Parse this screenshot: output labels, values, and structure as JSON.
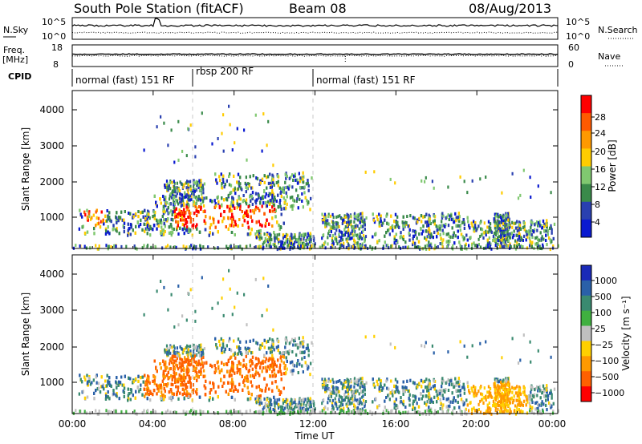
{
  "header": {
    "station": "South Pole Station (fitACF)",
    "beam": "Beam 08",
    "date": "08/Aug/2013"
  },
  "chart_data": [
    {
      "type": "line",
      "name": "sky-search-noise",
      "left_label": "N.Sky",
      "right_label": "N.Search",
      "left_ticks": [
        "10^5",
        "10^0"
      ],
      "right_ticks": [
        "10^5",
        "10^0"
      ],
      "xlim": [
        0,
        24
      ]
    },
    {
      "type": "line",
      "name": "frequency-nave",
      "left_label": "Freq.",
      "left_unit": "[MHz]",
      "right_label": "Nave",
      "left_ticks": [
        "18",
        "8"
      ],
      "right_ticks": [
        "60",
        "0"
      ],
      "xlim": [
        0,
        24
      ]
    },
    {
      "type": "table",
      "name": "cpid",
      "label": "CPID",
      "segments": [
        {
          "start": 0,
          "end": 6,
          "label": "normal (fast) 151 RF"
        },
        {
          "start": 6,
          "end": 12,
          "label": "rbsp 200 RF"
        },
        {
          "start": 12,
          "end": 24,
          "label": "normal (fast) 151 RF"
        }
      ]
    },
    {
      "type": "heatmap",
      "name": "power",
      "ylabel": "Slant Range [km]",
      "y_ticks": [
        "1000",
        "2000",
        "3000",
        "4000"
      ],
      "ylim": [
        200,
        4500
      ],
      "xlim": [
        0,
        24
      ],
      "colorbar_label": "Power [dB]",
      "colorbar_ticks": [
        "28",
        "24",
        "20",
        "16",
        "12",
        "8",
        "4"
      ],
      "colorbar_colors": [
        "#ff0000",
        "#ff5a00",
        "#ff9900",
        "#ffcc00",
        "#80c870",
        "#3a8a4a",
        "#2a40b0",
        "#0a1ad0"
      ]
    },
    {
      "type": "heatmap",
      "name": "velocity",
      "ylabel": "Slant Range [km]",
      "y_ticks": [
        "1000",
        "2000",
        "3000",
        "4000"
      ],
      "ylim": [
        200,
        4500
      ],
      "xlim": [
        0,
        24
      ],
      "xlabel": "Time UT",
      "x_ticks": [
        "00:00",
        "04:00",
        "08:00",
        "12:00",
        "16:00",
        "20:00",
        "00:00"
      ],
      "colorbar_label": "Velocity [m s⁻¹]",
      "colorbar_ticks": [
        "1000",
        "500",
        "100",
        "25",
        "−25",
        "−100",
        "−500",
        "−1000"
      ],
      "colorbar_colors": [
        "#1a2ab8",
        "#2a60a8",
        "#3a8a70",
        "#40b040",
        "#c0c0c0",
        "#ffd000",
        "#ff9900",
        "#ff6000",
        "#ff0000"
      ]
    }
  ]
}
